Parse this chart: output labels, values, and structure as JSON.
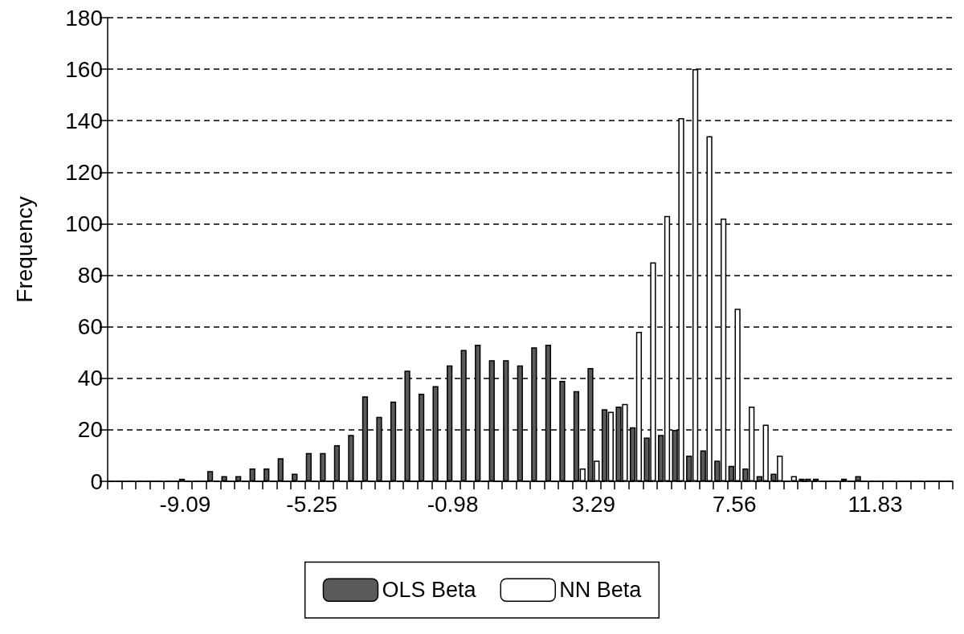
{
  "chart_data": {
    "type": "bar",
    "ylabel": "Frequency",
    "categories": [
      null,
      null,
      null,
      null,
      null,
      "-9.09",
      null,
      null,
      null,
      null,
      null,
      null,
      null,
      null,
      "-5.25",
      null,
      null,
      null,
      null,
      null,
      null,
      null,
      null,
      null,
      "-0.98",
      null,
      null,
      null,
      null,
      null,
      null,
      null,
      null,
      null,
      "3.29",
      null,
      null,
      null,
      null,
      null,
      null,
      null,
      null,
      null,
      "7.56",
      null,
      null,
      null,
      null,
      null,
      null,
      null,
      null,
      null,
      "11.83",
      null,
      null,
      null,
      null,
      null
    ],
    "series": [
      {
        "name": "OLS Beta",
        "color": "#5a5a5a",
        "values": [
          0,
          0,
          0,
          0,
          0,
          1,
          0,
          4,
          2,
          2,
          5,
          5,
          9,
          3,
          11,
          11,
          14,
          18,
          33,
          25,
          31,
          43,
          34,
          37,
          45,
          51,
          53,
          47,
          47,
          45,
          52,
          53,
          39,
          35,
          44,
          28,
          29,
          21,
          17,
          18,
          20,
          10,
          12,
          8,
          6,
          5,
          2,
          3,
          0,
          1,
          1,
          0,
          1,
          2,
          0,
          0,
          0,
          0,
          0,
          0
        ]
      },
      {
        "name": "NN Beta",
        "color": "#ffffff",
        "values": [
          0,
          0,
          0,
          0,
          0,
          0,
          0,
          0,
          0,
          0,
          0,
          0,
          0,
          0,
          0,
          0,
          0,
          0,
          0,
          0,
          0,
          0,
          0,
          0,
          0,
          0,
          0,
          0,
          0,
          0,
          0,
          0,
          0,
          5,
          8,
          27,
          30,
          58,
          85,
          103,
          141,
          160,
          134,
          102,
          67,
          29,
          22,
          10,
          2,
          1,
          0,
          0,
          0,
          0,
          0,
          0,
          0,
          0,
          0,
          0
        ]
      }
    ],
    "ylim": [
      0,
      180
    ],
    "yticks": [
      0,
      20,
      40,
      60,
      80,
      100,
      120,
      140,
      160,
      180
    ],
    "grid": "y",
    "legend": "bottom"
  }
}
